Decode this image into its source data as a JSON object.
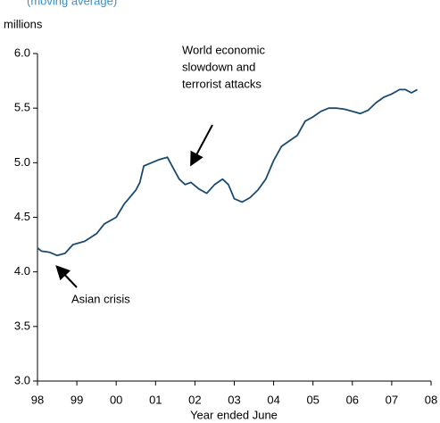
{
  "chart_data": {
    "type": "line",
    "subtitle": "(moving average)",
    "y_unit": "millions",
    "x_label": "Year ended June",
    "xlim": [
      1998,
      2008
    ],
    "xticks": [
      {
        "value": 1998,
        "label": "98"
      },
      {
        "value": 1999,
        "label": "99"
      },
      {
        "value": 2000,
        "label": "00"
      },
      {
        "value": 2001,
        "label": "01"
      },
      {
        "value": 2002,
        "label": "02"
      },
      {
        "value": 2003,
        "label": "03"
      },
      {
        "value": 2004,
        "label": "04"
      },
      {
        "value": 2005,
        "label": "05"
      },
      {
        "value": 2006,
        "label": "06"
      },
      {
        "value": 2007,
        "label": "07"
      },
      {
        "value": 2008,
        "label": "08"
      }
    ],
    "ylim": [
      3.0,
      6.0
    ],
    "yticks": [
      {
        "value": 3,
        "label": "3.0"
      },
      3.5,
      {
        "value": 4,
        "label": "4.0"
      },
      4.5,
      {
        "value": 5,
        "label": "5.0"
      },
      5.5,
      {
        "value": 6,
        "label": "6.0"
      }
    ],
    "x": [
      1998.0,
      1998.1,
      1998.3,
      1998.5,
      1998.7,
      1998.9,
      1999.2,
      1999.5,
      1999.7,
      2000.0,
      2000.2,
      2000.5,
      2000.6,
      2000.7,
      2000.9,
      2001.1,
      2001.3,
      2001.45,
      2001.6,
      2001.75,
      2001.9,
      2002.1,
      2002.3,
      2002.5,
      2002.7,
      2002.85,
      2003.0,
      2003.2,
      2003.4,
      2003.6,
      2003.8,
      2004.0,
      2004.2,
      2004.4,
      2004.6,
      2004.8,
      2005.0,
      2005.2,
      2005.4,
      2005.6,
      2005.8,
      2006.0,
      2006.2,
      2006.4,
      2006.6,
      2006.8,
      2007.0,
      2007.2,
      2007.35,
      2007.5,
      2007.65
    ],
    "series": [
      {
        "color": "#1b4a6e",
        "values": [
          4.22,
          4.19,
          4.18,
          4.15,
          4.17,
          4.25,
          4.28,
          4.35,
          4.44,
          4.5,
          4.62,
          4.75,
          4.82,
          4.97,
          5.0,
          5.03,
          5.05,
          4.95,
          4.85,
          4.8,
          4.82,
          4.76,
          4.72,
          4.8,
          4.85,
          4.8,
          4.67,
          4.64,
          4.68,
          4.75,
          4.85,
          5.02,
          5.15,
          5.2,
          5.25,
          5.38,
          5.42,
          5.47,
          5.5,
          5.5,
          5.49,
          5.47,
          5.45,
          5.48,
          5.55,
          5.6,
          5.63,
          5.67,
          5.67,
          5.64,
          5.67
        ]
      }
    ],
    "annotations": [
      {
        "lines": [
          "World economic",
          "slowdown and",
          "terrorist attacks"
        ]
      },
      {
        "lines": [
          "Asian crisis"
        ]
      }
    ]
  }
}
